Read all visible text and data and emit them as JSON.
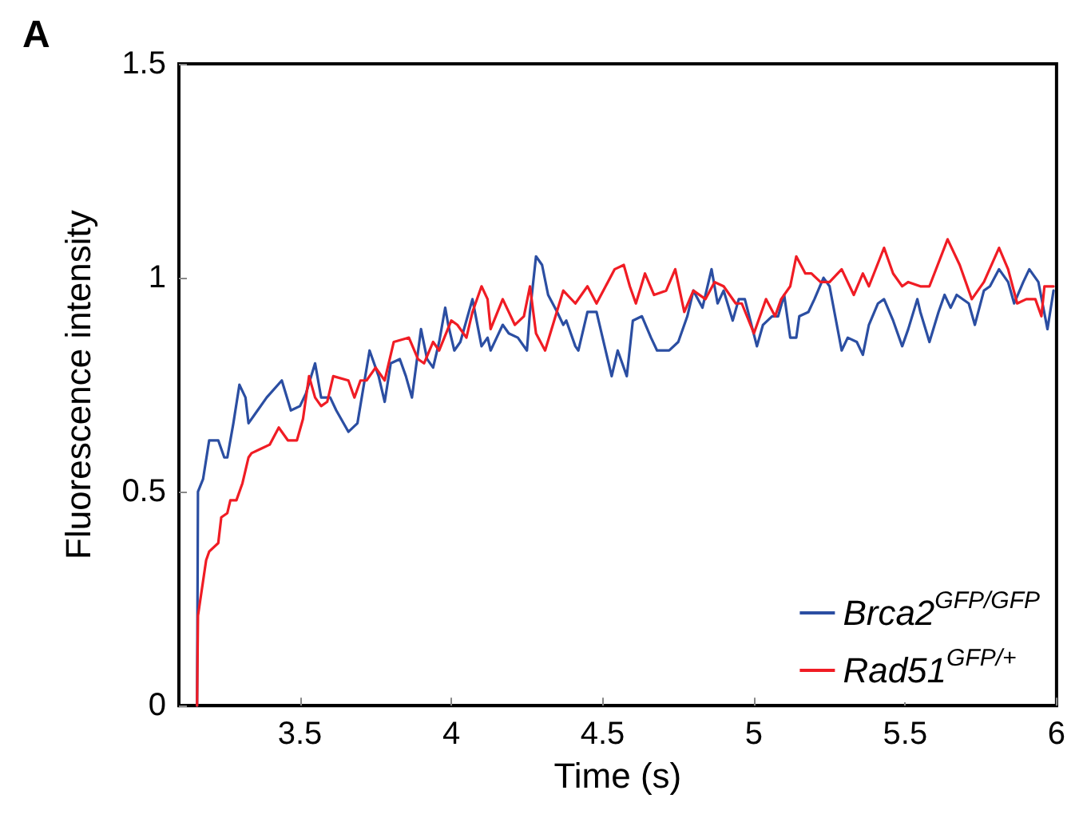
{
  "chart_data": {
    "type": "line",
    "xlabel": "Time (s)",
    "ylabel": "Fluorescence intensity",
    "annotations": [
      "A"
    ],
    "xlim": [
      3.1,
      6
    ],
    "xticks": [
      3.5,
      4,
      4.5,
      5,
      5.5,
      6
    ],
    "ylim": [
      0,
      1.5
    ],
    "yticks": [
      0,
      0.5,
      1,
      1.5
    ],
    "grid": false,
    "legend": "bottom right",
    "marker": "none",
    "line_style": "solid",
    "series": [
      {
        "name": "Brca2$^{GFP/GFP}$",
        "color": "#2b4ea2",
        "x": [
          3.16,
          3.163,
          3.18,
          3.2,
          3.23,
          3.25,
          3.26,
          3.28,
          3.3,
          3.32,
          3.33,
          3.36,
          3.39,
          3.44,
          3.47,
          3.5,
          3.52,
          3.55,
          3.57,
          3.6,
          3.62,
          3.66,
          3.69,
          3.73,
          3.76,
          3.78,
          3.8,
          3.83,
          3.85,
          3.87,
          3.9,
          3.92,
          3.94,
          3.96,
          3.98,
          3.99,
          4.01,
          4.03,
          4.07,
          4.1,
          4.12,
          4.13,
          4.15,
          4.17,
          4.19,
          4.22,
          4.25,
          4.26,
          4.28,
          4.3,
          4.32,
          4.35,
          4.37,
          4.38,
          4.41,
          4.42,
          4.45,
          4.48,
          4.5,
          4.53,
          4.55,
          4.58,
          4.6,
          4.63,
          4.66,
          4.68,
          4.72,
          4.75,
          4.78,
          4.8,
          4.83,
          4.86,
          4.88,
          4.9,
          4.93,
          4.95,
          4.97,
          5.01,
          5.03,
          5.06,
          5.08,
          5.1,
          5.12,
          5.14,
          5.15,
          5.18,
          5.2,
          5.23,
          5.25,
          5.29,
          5.31,
          5.34,
          5.36,
          5.38,
          5.41,
          5.43,
          5.46,
          5.49,
          5.51,
          5.54,
          5.55,
          5.58,
          5.61,
          5.63,
          5.65,
          5.67,
          5.71,
          5.73,
          5.76,
          5.78,
          5.81,
          5.84,
          5.86,
          5.89,
          5.91,
          5.94,
          5.97,
          5.99
        ],
        "values": [
          0,
          0.5,
          0.53,
          0.62,
          0.62,
          0.58,
          0.58,
          0.66,
          0.75,
          0.72,
          0.66,
          0.69,
          0.72,
          0.76,
          0.69,
          0.7,
          0.73,
          0.8,
          0.72,
          0.72,
          0.69,
          0.64,
          0.66,
          0.83,
          0.77,
          0.71,
          0.8,
          0.81,
          0.77,
          0.72,
          0.88,
          0.81,
          0.79,
          0.85,
          0.93,
          0.89,
          0.83,
          0.85,
          0.95,
          0.84,
          0.86,
          0.83,
          0.86,
          0.89,
          0.87,
          0.86,
          0.83,
          0.92,
          1.05,
          1.03,
          0.96,
          0.92,
          0.89,
          0.9,
          0.84,
          0.83,
          0.92,
          0.92,
          0.86,
          0.77,
          0.83,
          0.77,
          0.9,
          0.91,
          0.86,
          0.83,
          0.83,
          0.85,
          0.91,
          0.97,
          0.93,
          1.02,
          0.94,
          0.97,
          0.9,
          0.95,
          0.95,
          0.84,
          0.89,
          0.91,
          0.91,
          0.96,
          0.86,
          0.86,
          0.91,
          0.92,
          0.95,
          1,
          0.98,
          0.83,
          0.86,
          0.85,
          0.82,
          0.89,
          0.94,
          0.95,
          0.9,
          0.84,
          0.88,
          0.95,
          0.92,
          0.85,
          0.92,
          0.96,
          0.93,
          0.96,
          0.94,
          0.89,
          0.97,
          0.98,
          1.02,
          0.99,
          0.94,
          0.99,
          1.02,
          0.99,
          0.88,
          0.97
        ]
      },
      {
        "name": "Rad51$^{GFP/+}$",
        "color": "#f01c24",
        "x": [
          3.16,
          3.163,
          3.19,
          3.2,
          3.23,
          3.24,
          3.26,
          3.27,
          3.29,
          3.31,
          3.33,
          3.34,
          3.37,
          3.4,
          3.43,
          3.46,
          3.49,
          3.51,
          3.53,
          3.55,
          3.57,
          3.59,
          3.61,
          3.66,
          3.68,
          3.7,
          3.72,
          3.75,
          3.78,
          3.81,
          3.86,
          3.89,
          3.91,
          3.94,
          3.96,
          4,
          4.02,
          4.05,
          4.07,
          4.1,
          4.12,
          4.13,
          4.17,
          4.21,
          4.24,
          4.26,
          4.28,
          4.31,
          4.34,
          4.37,
          4.41,
          4.45,
          4.48,
          4.51,
          4.54,
          4.57,
          4.59,
          4.61,
          4.64,
          4.67,
          4.71,
          4.74,
          4.77,
          4.8,
          4.84,
          4.87,
          4.9,
          4.94,
          4.96,
          5,
          5.02,
          5.04,
          5.07,
          5.09,
          5.12,
          5.14,
          5.17,
          5.19,
          5.22,
          5.25,
          5.29,
          5.33,
          5.36,
          5.38,
          5.43,
          5.46,
          5.49,
          5.51,
          5.55,
          5.58,
          5.64,
          5.68,
          5.72,
          5.76,
          5.81,
          5.84,
          5.87,
          5.9,
          5.93,
          5.95,
          5.96,
          5.99
        ],
        "values": [
          0,
          0.21,
          0.34,
          0.36,
          0.38,
          0.44,
          0.45,
          0.48,
          0.48,
          0.52,
          0.58,
          0.59,
          0.6,
          0.61,
          0.65,
          0.62,
          0.62,
          0.67,
          0.77,
          0.72,
          0.7,
          0.71,
          0.77,
          0.76,
          0.72,
          0.76,
          0.76,
          0.79,
          0.76,
          0.85,
          0.86,
          0.81,
          0.8,
          0.85,
          0.83,
          0.9,
          0.89,
          0.86,
          0.92,
          0.98,
          0.95,
          0.88,
          0.95,
          0.89,
          0.91,
          0.98,
          0.87,
          0.83,
          0.9,
          0.97,
          0.94,
          0.98,
          0.94,
          0.98,
          1.02,
          1.03,
          0.98,
          0.94,
          1.01,
          0.96,
          0.97,
          1.02,
          0.92,
          0.97,
          0.95,
          0.99,
          0.98,
          0.94,
          0.94,
          0.87,
          0.91,
          0.95,
          0.91,
          0.95,
          0.98,
          1.05,
          1.01,
          1.01,
          0.99,
          0.99,
          1.02,
          0.96,
          1.01,
          0.98,
          1.07,
          1.01,
          0.98,
          0.99,
          0.98,
          0.98,
          1.09,
          1.03,
          0.95,
          0.99,
          1.07,
          1.02,
          0.94,
          0.95,
          0.95,
          0.91,
          0.98,
          0.98
        ]
      }
    ]
  }
}
